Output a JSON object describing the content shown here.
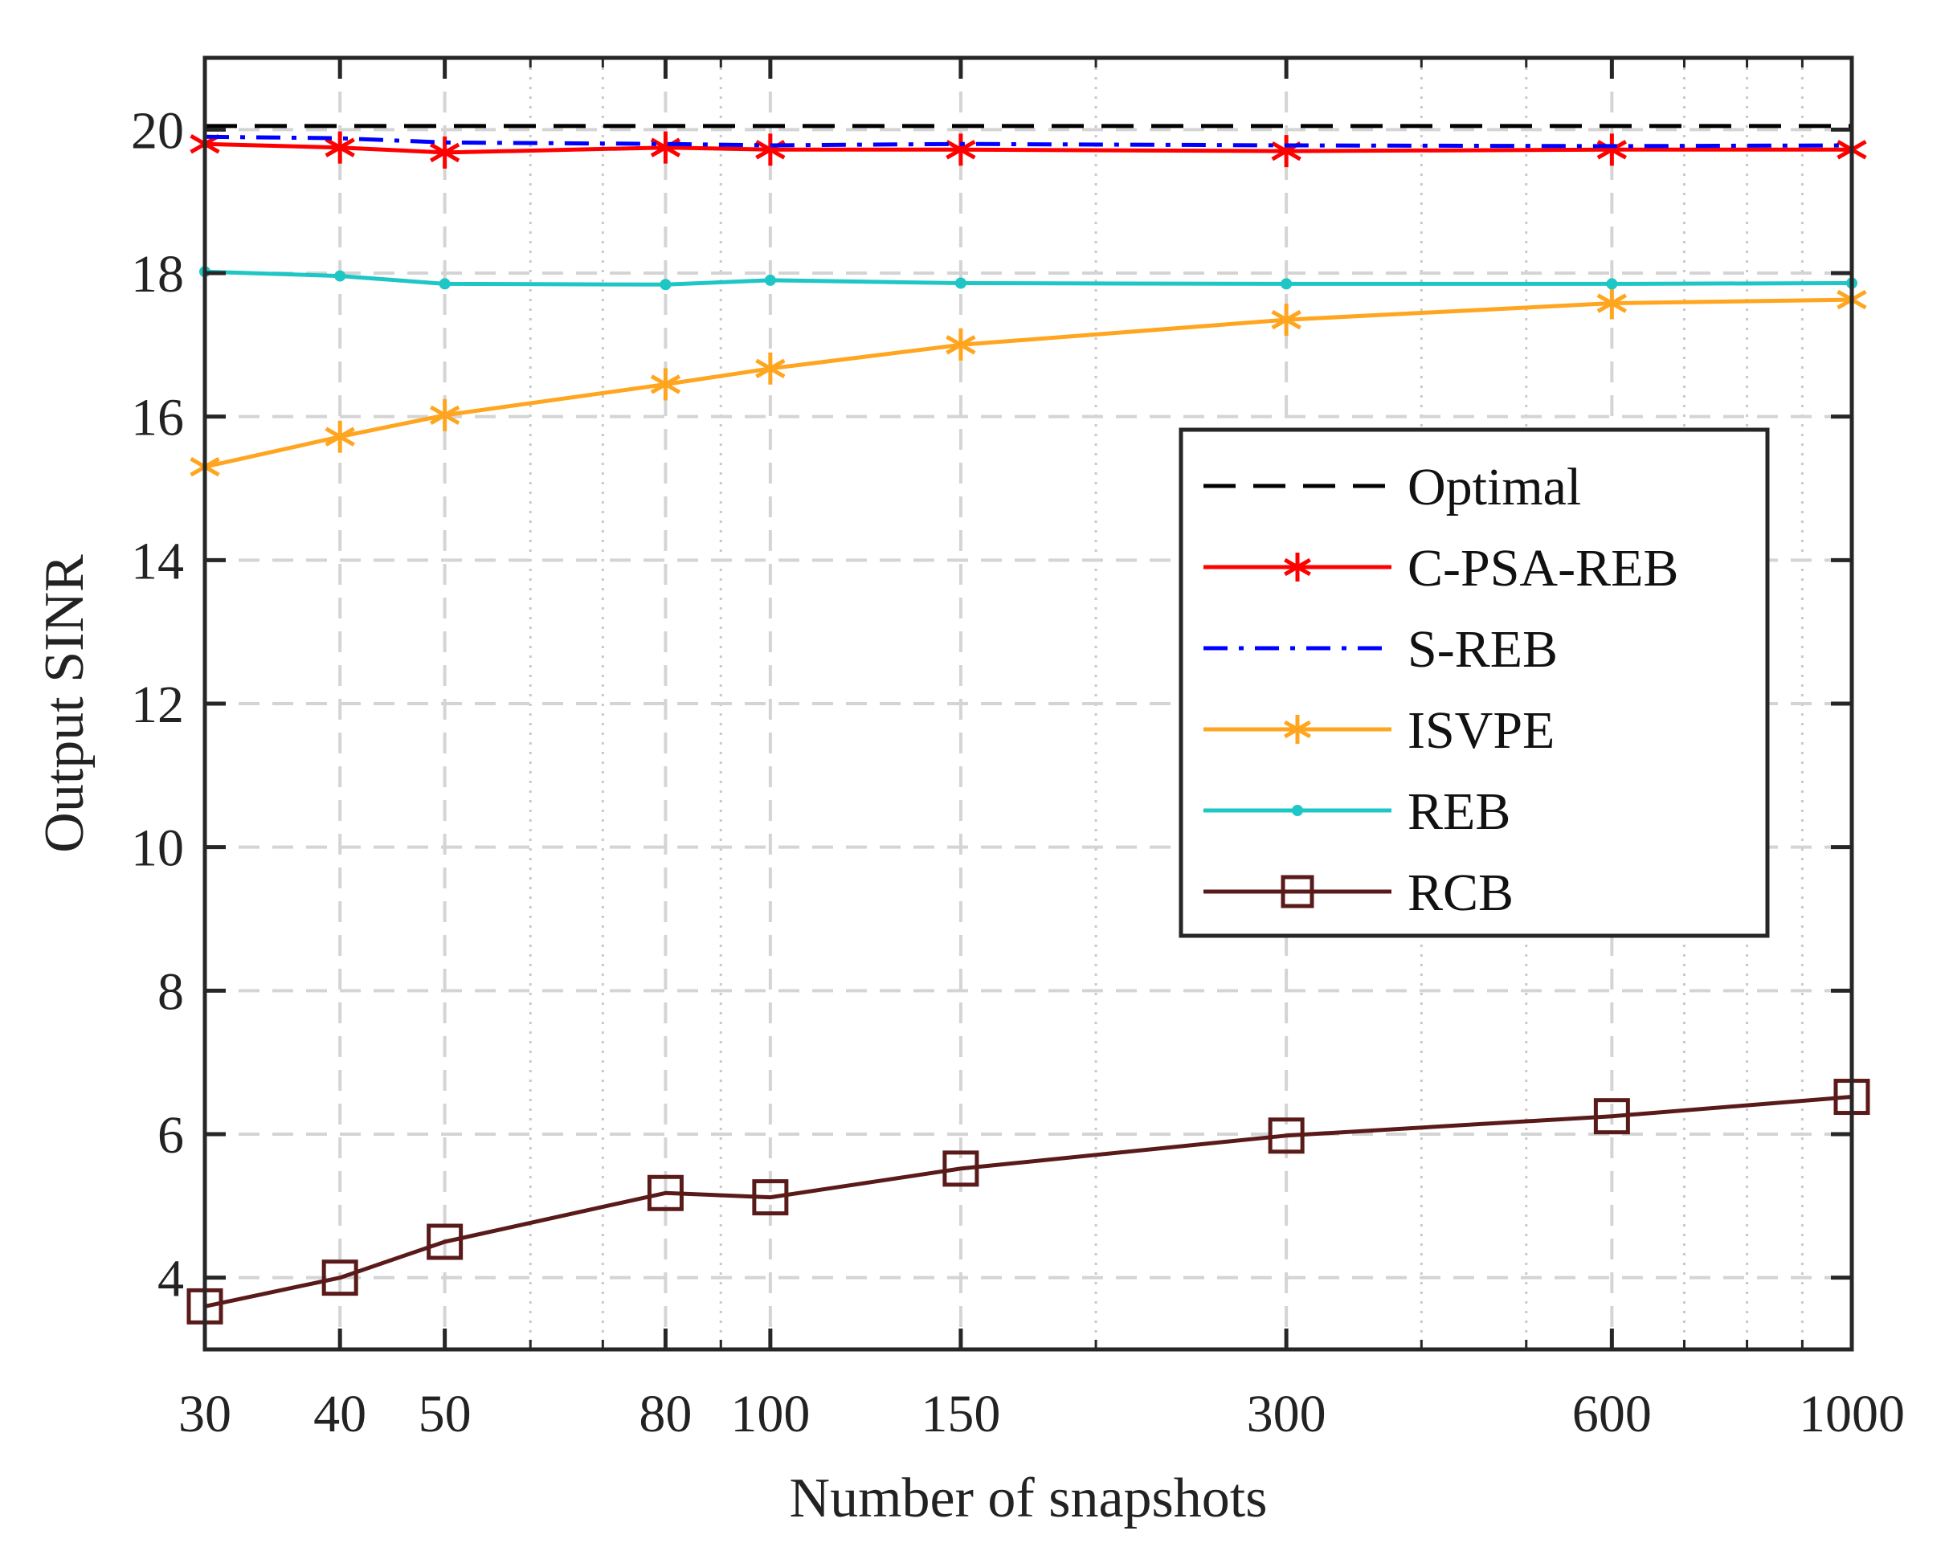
{
  "chart_data": {
    "type": "line",
    "title": "",
    "xlabel": "Number of snapshots",
    "ylabel": "Output SINR",
    "x_scale": "log",
    "x": [
      30,
      40,
      50,
      80,
      100,
      150,
      300,
      600,
      1000
    ],
    "x_tick_labels": [
      "30",
      "40",
      "50",
      "80",
      "100",
      "150",
      "300",
      "600",
      "1000"
    ],
    "xlim": [
      30,
      1000
    ],
    "ylim": [
      3,
      21
    ],
    "y_ticks": [
      4,
      6,
      8,
      10,
      12,
      14,
      16,
      18,
      20
    ],
    "y_tick_labels": [
      "4",
      "6",
      "8",
      "10",
      "12",
      "14",
      "16",
      "18",
      "20"
    ],
    "grid": true,
    "legend_position": "right-middle",
    "series": [
      {
        "name": "Optimal",
        "color": "#000000",
        "line": "dashed",
        "marker": "none",
        "values": [
          20.05,
          20.05,
          20.05,
          20.05,
          20.05,
          20.05,
          20.05,
          20.05,
          20.05
        ]
      },
      {
        "name": "C-PSA-REB",
        "color": "#ff0000",
        "line": "solid",
        "marker": "asterisk",
        "values": [
          19.8,
          19.75,
          19.68,
          19.75,
          19.72,
          19.72,
          19.7,
          19.72,
          19.72
        ]
      },
      {
        "name": "S-REB",
        "color": "#0000ff",
        "line": "dashdot",
        "marker": "none",
        "values": [
          19.9,
          19.88,
          19.82,
          19.8,
          19.78,
          19.8,
          19.78,
          19.77,
          19.78
        ]
      },
      {
        "name": "ISVPE",
        "color": "#ffa51f",
        "line": "solid",
        "marker": "asterisk",
        "values": [
          15.3,
          15.72,
          16.02,
          16.45,
          16.67,
          17.0,
          17.35,
          17.58,
          17.63
        ]
      },
      {
        "name": "REB",
        "color": "#1ec6c6",
        "line": "solid",
        "marker": "dot",
        "values": [
          18.02,
          17.96,
          17.85,
          17.84,
          17.9,
          17.86,
          17.85,
          17.85,
          17.86
        ]
      },
      {
        "name": "RCB",
        "color": "#5a1a1a",
        "line": "solid",
        "marker": "square",
        "values": [
          3.6,
          4.0,
          4.5,
          5.18,
          5.12,
          5.52,
          5.98,
          6.25,
          6.52
        ]
      }
    ]
  }
}
